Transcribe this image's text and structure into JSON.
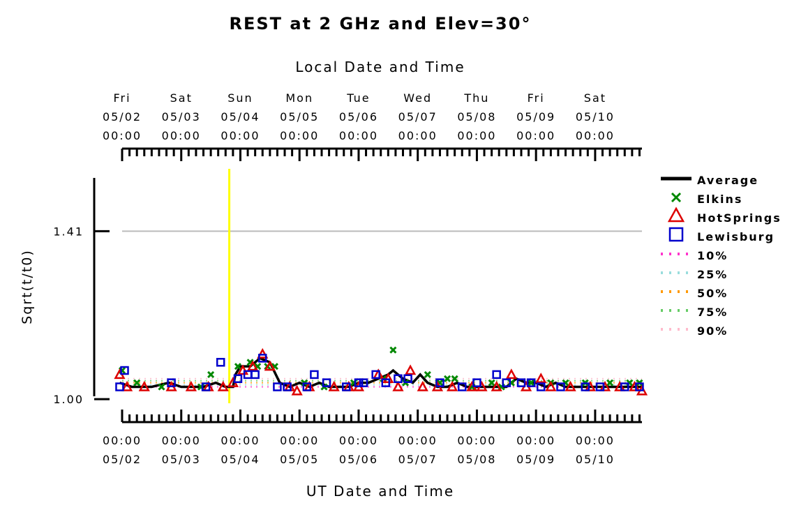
{
  "chart_data": {
    "type": "line",
    "title": "REST at 2 GHz and Elev=30°",
    "top_axis_title": "Local Date and Time",
    "xlabel": "UT Date and Time",
    "ylabel": "Sqrt(t/t0)",
    "y_ticks": [
      "1.41",
      "1.00"
    ],
    "ylim": [
      0.99,
      1.54
    ],
    "reference_line_y": 1.41,
    "top_ticks": [
      {
        "day": "Fri",
        "date": "05/02",
        "time": "00:00"
      },
      {
        "day": "Sat",
        "date": "05/03",
        "time": "00:00"
      },
      {
        "day": "Sun",
        "date": "05/04",
        "time": "00:00"
      },
      {
        "day": "Mon",
        "date": "05/05",
        "time": "00:00"
      },
      {
        "day": "Tue",
        "date": "05/06",
        "time": "00:00"
      },
      {
        "day": "Wed",
        "date": "05/07",
        "time": "00:00"
      },
      {
        "day": "Thu",
        "date": "05/08",
        "time": "00:00"
      },
      {
        "day": "Fri",
        "date": "05/09",
        "time": "00:00"
      },
      {
        "day": "Sat",
        "date": "05/10",
        "time": "00:00"
      }
    ],
    "bottom_ticks": [
      {
        "time": "00:00",
        "date": "05/02"
      },
      {
        "time": "00:00",
        "date": "05/03"
      },
      {
        "time": "00:00",
        "date": "05/04"
      },
      {
        "time": "00:00",
        "date": "05/05"
      },
      {
        "time": "00:00",
        "date": "05/06"
      },
      {
        "time": "00:00",
        "date": "05/07"
      },
      {
        "time": "00:00",
        "date": "05/08"
      },
      {
        "time": "00:00",
        "date": "05/09"
      },
      {
        "time": "00:00",
        "date": "05/10"
      }
    ],
    "x_start": "05/02 00:00",
    "x_end": "05/10 19:00",
    "current_time_marker": "05/03 19:30",
    "legend_position": "right",
    "series": [
      {
        "name": "Average",
        "color": "#000000",
        "style": "line",
        "x": [
          "05/01 23:00",
          "05/02 04:00",
          "05/02 12:00",
          "05/02 19:00",
          "05/03 00:00",
          "05/03 04:00",
          "05/03 09:00",
          "05/03 14:00",
          "05/03 18:00",
          "05/03 21:00",
          "05/03 22:00",
          "05/04 00:00",
          "05/04 04:00",
          "05/04 08:00",
          "05/04 12:00",
          "05/04 16:00",
          "05/04 20:00",
          "05/05 00:00",
          "05/05 04:00",
          "05/05 08:00",
          "05/05 12:00",
          "05/05 16:00",
          "05/05 20:00",
          "05/06 00:00",
          "05/06 04:00",
          "05/06 08:00",
          "05/06 12:00",
          "05/06 14:00",
          "05/06 18:00",
          "05/06 22:00",
          "05/07 01:00",
          "05/07 04:00",
          "05/07 08:00",
          "05/07 12:00",
          "05/07 16:00",
          "05/07 20:00",
          "05/08 00:00",
          "05/08 04:00",
          "05/08 08:00",
          "05/08 12:00",
          "05/08 16:00",
          "05/08 20:00",
          "05/09 00:00",
          "05/09 04:00",
          "05/09 08:00",
          "05/09 12:00",
          "05/09 16:00",
          "05/09 20:00",
          "05/10 00:00",
          "05/10 04:00",
          "05/10 08:00",
          "05/10 12:00",
          "05/10 16:00",
          "05/10 19:00"
        ],
        "y": [
          1.04,
          1.03,
          1.03,
          1.04,
          1.03,
          1.03,
          1.03,
          1.04,
          1.03,
          1.03,
          1.06,
          1.08,
          1.08,
          1.1,
          1.09,
          1.04,
          1.03,
          1.04,
          1.03,
          1.04,
          1.03,
          1.03,
          1.03,
          1.04,
          1.04,
          1.05,
          1.06,
          1.07,
          1.05,
          1.04,
          1.06,
          1.04,
          1.03,
          1.03,
          1.04,
          1.03,
          1.03,
          1.03,
          1.03,
          1.03,
          1.05,
          1.04,
          1.04,
          1.03,
          1.04,
          1.03,
          1.03,
          1.03,
          1.03,
          1.03,
          1.03,
          1.03,
          1.03,
          1.03
        ]
      },
      {
        "name": "Elkins",
        "color": "#008800",
        "style": "x",
        "x": [
          "05/02 00:00",
          "05/02 06:00",
          "05/02 16:00",
          "05/03 08:00",
          "05/03 12:00",
          "05/03 23:00",
          "05/04 04:00",
          "05/04 07:00",
          "05/04 11:00",
          "05/04 14:00",
          "05/05 02:00",
          "05/05 10:00",
          "05/05 22:00",
          "05/06 10:00",
          "05/06 14:00",
          "05/06 19:00",
          "05/07 04:00",
          "05/07 09:00",
          "05/07 12:00",
          "05/07 15:00",
          "05/07 22:00",
          "05/08 06:00",
          "05/08 10:00",
          "05/08 14:00",
          "05/08 22:00",
          "05/09 06:00",
          "05/09 12:00",
          "05/09 20:00",
          "05/10 06:00",
          "05/10 14:00",
          "05/10 18:00"
        ],
        "y": [
          1.07,
          1.04,
          1.03,
          1.03,
          1.06,
          1.08,
          1.09,
          1.08,
          1.08,
          1.08,
          1.04,
          1.03,
          1.04,
          1.05,
          1.12,
          1.04,
          1.06,
          1.04,
          1.05,
          1.05,
          1.03,
          1.04,
          1.03,
          1.04,
          1.04,
          1.04,
          1.04,
          1.04,
          1.04,
          1.04,
          1.04
        ]
      },
      {
        "name": "HotSprings",
        "color": "#dd0000",
        "style": "triangle",
        "x": [
          "05/01 23:00",
          "05/02 02:00",
          "05/02 09:00",
          "05/02 20:00",
          "05/03 04:00",
          "05/03 11:00",
          "05/03 17:00",
          "05/03 21:00",
          "05/04 01:00",
          "05/04 05:00",
          "05/04 09:00",
          "05/04 12:00",
          "05/04 20:00",
          "05/04 23:00",
          "05/05 04:00",
          "05/05 14:00",
          "05/05 20:00",
          "05/06 00:00",
          "05/06 08:00",
          "05/06 12:00",
          "05/06 16:00",
          "05/06 21:00",
          "05/07 02:00",
          "05/07 08:00",
          "05/07 14:00",
          "05/07 22:00",
          "05/08 02:00",
          "05/08 08:00",
          "05/08 14:00",
          "05/08 20:00",
          "05/09 02:00",
          "05/09 06:00",
          "05/09 14:00",
          "05/09 22:00",
          "05/10 04:00",
          "05/10 10:00",
          "05/10 16:00",
          "05/10 19:00"
        ],
        "y": [
          1.06,
          1.03,
          1.03,
          1.03,
          1.03,
          1.03,
          1.03,
          1.04,
          1.07,
          1.08,
          1.11,
          1.08,
          1.03,
          1.02,
          1.03,
          1.03,
          1.03,
          1.03,
          1.06,
          1.05,
          1.03,
          1.07,
          1.03,
          1.03,
          1.03,
          1.03,
          1.03,
          1.03,
          1.06,
          1.03,
          1.05,
          1.03,
          1.03,
          1.03,
          1.03,
          1.03,
          1.03,
          1.02
        ]
      },
      {
        "name": "Lewisburg",
        "color": "#0000cc",
        "style": "square",
        "x": [
          "05/01 23:00",
          "05/02 01:00",
          "05/02 20:00",
          "05/03 10:00",
          "05/03 16:00",
          "05/03 23:00",
          "05/04 03:00",
          "05/04 06:00",
          "05/04 09:00",
          "05/04 15:00",
          "05/04 19:00",
          "05/05 03:00",
          "05/05 06:00",
          "05/05 11:00",
          "05/05 19:00",
          "05/06 00:00",
          "05/06 02:00",
          "05/06 07:00",
          "05/06 11:00",
          "05/06 16:00",
          "05/06 20:00",
          "05/07 09:00",
          "05/07 18:00",
          "05/08 00:00",
          "05/08 08:00",
          "05/08 12:00",
          "05/08 18:00",
          "05/08 22:00",
          "05/09 02:00",
          "05/09 10:00",
          "05/09 20:00",
          "05/10 02:00",
          "05/10 12:00",
          "05/10 18:00"
        ],
        "y": [
          1.03,
          1.07,
          1.04,
          1.03,
          1.09,
          1.05,
          1.06,
          1.06,
          1.1,
          1.03,
          1.03,
          1.03,
          1.06,
          1.04,
          1.03,
          1.04,
          1.04,
          1.06,
          1.04,
          1.05,
          1.05,
          1.04,
          1.03,
          1.04,
          1.06,
          1.04,
          1.04,
          1.04,
          1.03,
          1.03,
          1.03,
          1.03,
          1.03,
          1.03
        ]
      }
    ],
    "percentile_lines": [
      {
        "name": "10%",
        "color": "#ff33cc",
        "value": 1.03
      },
      {
        "name": "25%",
        "color": "#99dddd",
        "value": 1.035
      },
      {
        "name": "50%",
        "color": "#ff9900",
        "value": 1.04
      },
      {
        "name": "75%",
        "color": "#66cc66",
        "value": 1.045
      },
      {
        "name": "90%",
        "color": "#ffbbcc",
        "value": 1.05
      }
    ]
  }
}
